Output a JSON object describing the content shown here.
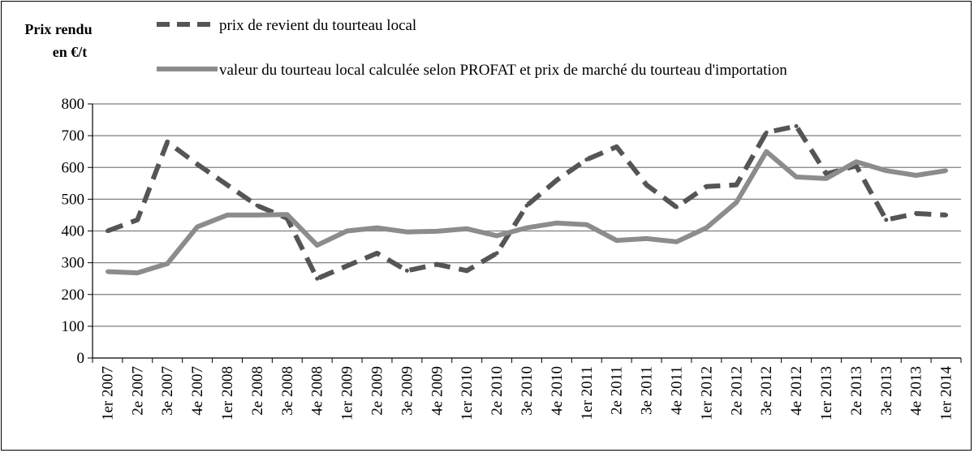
{
  "chart_data": {
    "type": "line",
    "ylabel": "Prix rendu en €/t",
    "ylabel_lines": [
      "Prix rendu",
      "en €/t"
    ],
    "xlabel": "",
    "ylim": [
      0,
      800
    ],
    "yticks": [
      0,
      100,
      200,
      300,
      400,
      500,
      600,
      700,
      800
    ],
    "grid": true,
    "legend_position": "top",
    "categories": [
      "1er 2007",
      "2e 2007",
      "3e 2007",
      "4e 2007",
      "1er 2008",
      "2e 2008",
      "3e 2008",
      "4e 2008",
      "1er 2009",
      "2e 2009",
      "3e 2009",
      "4e 2009",
      "1er 2010",
      "2e 2010",
      "3e 2010",
      "4e 2010",
      "1er 2011",
      "2e 2011",
      "3e 2011",
      "4e 2011",
      "1er 2012",
      "2e 2012",
      "3e 2012",
      "4e 2012",
      "1er 2013",
      "2e 2013",
      "3e 2013",
      "4e 2013",
      "1er 2014"
    ],
    "series": [
      {
        "name": "prix de revient du tourteau local",
        "style": "dashed",
        "color": "#555555",
        "values": [
          400,
          435,
          680,
          610,
          545,
          480,
          440,
          250,
          290,
          330,
          275,
          295,
          275,
          330,
          480,
          560,
          625,
          665,
          545,
          475,
          540,
          545,
          710,
          730,
          580,
          605,
          435,
          455,
          450
        ]
      },
      {
        "name": "valeur du tourteau local calculée selon PROFAT et prix de marché du tourteau d'importation",
        "style": "solid",
        "color": "#8c8c8c",
        "values": [
          272,
          268,
          297,
          413,
          450,
          450,
          452,
          355,
          400,
          410,
          397,
          399,
          407,
          385,
          410,
          425,
          420,
          370,
          376,
          366,
          410,
          490,
          650,
          570,
          565,
          618,
          590,
          575,
          590
        ]
      }
    ]
  }
}
